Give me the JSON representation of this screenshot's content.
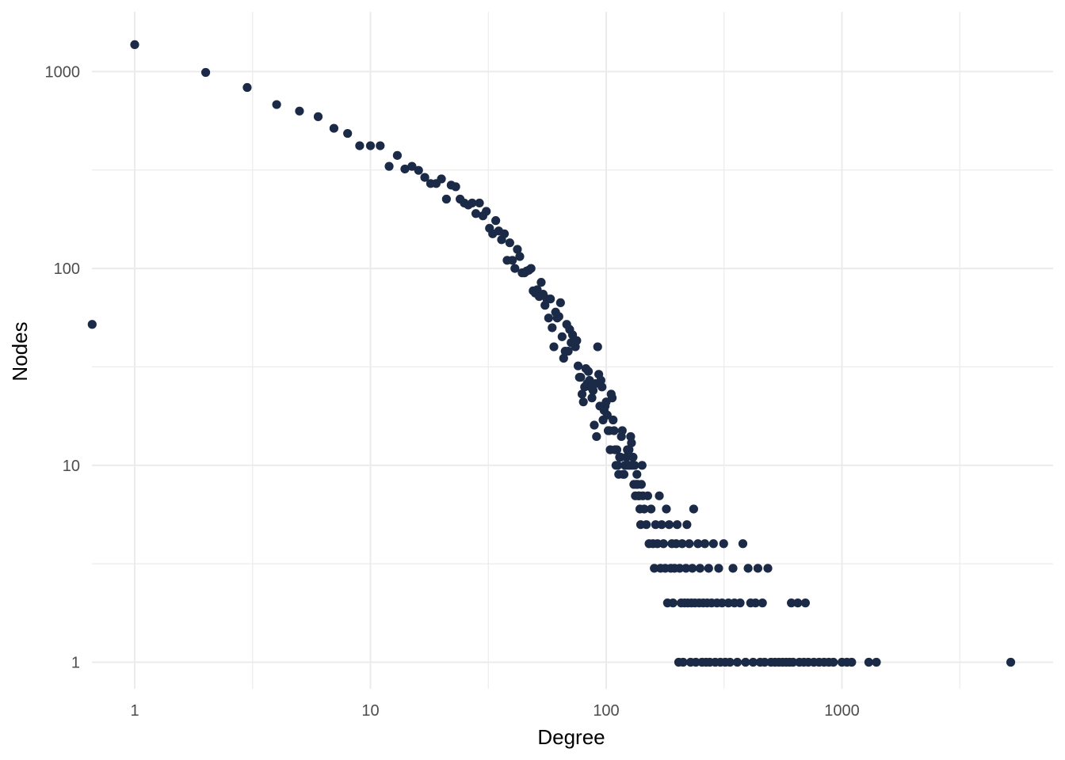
{
  "chart_data": {
    "type": "scatter",
    "title": "",
    "xlabel": "Degree",
    "ylabel": "Nodes",
    "x_scale": "log",
    "y_scale": "log",
    "xlim": [
      0.66,
      7600
    ],
    "ylim": [
      0.72,
      1950
    ],
    "x_ticks": [
      1,
      10,
      100,
      1000
    ],
    "x_tick_labels": [
      "1",
      "10",
      "100",
      "1000"
    ],
    "y_ticks": [
      1,
      10,
      100,
      1000
    ],
    "y_tick_labels": [
      "1",
      "10",
      "100",
      "1000"
    ],
    "grid": true,
    "legend": "none",
    "point_color": "#1b2a47",
    "points": [
      [
        0.66,
        52
      ],
      [
        1,
        1370
      ],
      [
        2,
        990
      ],
      [
        3,
        830
      ],
      [
        4,
        680
      ],
      [
        5,
        630
      ],
      [
        6,
        590
      ],
      [
        7,
        515
      ],
      [
        8,
        485
      ],
      [
        9,
        420
      ],
      [
        10,
        420
      ],
      [
        11,
        420
      ],
      [
        12,
        330
      ],
      [
        13,
        375
      ],
      [
        14,
        320
      ],
      [
        15,
        330
      ],
      [
        16,
        315
      ],
      [
        17,
        290
      ],
      [
        18,
        270
      ],
      [
        19,
        270
      ],
      [
        20,
        285
      ],
      [
        21,
        225
      ],
      [
        22,
        265
      ],
      [
        23,
        260
      ],
      [
        24,
        225
      ],
      [
        25,
        215
      ],
      [
        26,
        210
      ],
      [
        27,
        215
      ],
      [
        28,
        190
      ],
      [
        29,
        215
      ],
      [
        30,
        185
      ],
      [
        31,
        195
      ],
      [
        32,
        160
      ],
      [
        33,
        150
      ],
      [
        34,
        175
      ],
      [
        35,
        155
      ],
      [
        36,
        140
      ],
      [
        37,
        150
      ],
      [
        38,
        110
      ],
      [
        39,
        135
      ],
      [
        40,
        110
      ],
      [
        41,
        100
      ],
      [
        42,
        125
      ],
      [
        43,
        115
      ],
      [
        44,
        95
      ],
      [
        45,
        95
      ],
      [
        46,
        97
      ],
      [
        47,
        98
      ],
      [
        48,
        100
      ],
      [
        49,
        77
      ],
      [
        50,
        75
      ],
      [
        51,
        78
      ],
      [
        52,
        72
      ],
      [
        53,
        85
      ],
      [
        54,
        74
      ],
      [
        55,
        65
      ],
      [
        56,
        70
      ],
      [
        57,
        56
      ],
      [
        58,
        70
      ],
      [
        59,
        50
      ],
      [
        60,
        40
      ],
      [
        61,
        60
      ],
      [
        62,
        56
      ],
      [
        63,
        57
      ],
      [
        64,
        67
      ],
      [
        65,
        45
      ],
      [
        66,
        35
      ],
      [
        67,
        38
      ],
      [
        68,
        52
      ],
      [
        69,
        38
      ],
      [
        70,
        49
      ],
      [
        71,
        42
      ],
      [
        72,
        46
      ],
      [
        73,
        42
      ],
      [
        74,
        40
      ],
      [
        75,
        43
      ],
      [
        76,
        32
      ],
      [
        77,
        28
      ],
      [
        78,
        28
      ],
      [
        79,
        23
      ],
      [
        80,
        21
      ],
      [
        81,
        25
      ],
      [
        82,
        31
      ],
      [
        83,
        26
      ],
      [
        84,
        30
      ],
      [
        85,
        27
      ],
      [
        86,
        25
      ],
      [
        87,
        22
      ],
      [
        88,
        24
      ],
      [
        89,
        16
      ],
      [
        90,
        26
      ],
      [
        91,
        14
      ],
      [
        92,
        40
      ],
      [
        93,
        29
      ],
      [
        94,
        20
      ],
      [
        95,
        27
      ],
      [
        96,
        25
      ],
      [
        97,
        17
      ],
      [
        98,
        19
      ],
      [
        99,
        20
      ],
      [
        100,
        21
      ],
      [
        101,
        18
      ],
      [
        102,
        15
      ],
      [
        103,
        15
      ],
      [
        104,
        12
      ],
      [
        105,
        23
      ],
      [
        106,
        22
      ],
      [
        107,
        17
      ],
      [
        108,
        15
      ],
      [
        109,
        12
      ],
      [
        110,
        10
      ],
      [
        111,
        12
      ],
      [
        112,
        10
      ],
      [
        113,
        9
      ],
      [
        114,
        11
      ],
      [
        115,
        11
      ],
      [
        116,
        14
      ],
      [
        117,
        15
      ],
      [
        118,
        9
      ],
      [
        119,
        9
      ],
      [
        120,
        10
      ],
      [
        121,
        10
      ],
      [
        122,
        11
      ],
      [
        123,
        12
      ],
      [
        124,
        10
      ],
      [
        125,
        12
      ],
      [
        126,
        10
      ],
      [
        127,
        14
      ],
      [
        128,
        13
      ],
      [
        129,
        10
      ],
      [
        130,
        11
      ],
      [
        131,
        8
      ],
      [
        132,
        10
      ],
      [
        133,
        7
      ],
      [
        134,
        8
      ],
      [
        135,
        9
      ],
      [
        136,
        8
      ],
      [
        137,
        7
      ],
      [
        138,
        7
      ],
      [
        139,
        6
      ],
      [
        140,
        5
      ],
      [
        141,
        8
      ],
      [
        142,
        10
      ],
      [
        143,
        7
      ],
      [
        145,
        6
      ],
      [
        148,
        5
      ],
      [
        150,
        7
      ],
      [
        152,
        4
      ],
      [
        155,
        6
      ],
      [
        158,
        4
      ],
      [
        160,
        3
      ],
      [
        162,
        5
      ],
      [
        165,
        4
      ],
      [
        168,
        7
      ],
      [
        170,
        3
      ],
      [
        172,
        5
      ],
      [
        175,
        4
      ],
      [
        178,
        3
      ],
      [
        180,
        6
      ],
      [
        182,
        2
      ],
      [
        185,
        5
      ],
      [
        188,
        3
      ],
      [
        190,
        4
      ],
      [
        192,
        2
      ],
      [
        195,
        3
      ],
      [
        198,
        4
      ],
      [
        200,
        5
      ],
      [
        203,
        1
      ],
      [
        205,
        3
      ],
      [
        208,
        2
      ],
      [
        210,
        4
      ],
      [
        212,
        1
      ],
      [
        215,
        2
      ],
      [
        218,
        3
      ],
      [
        220,
        5
      ],
      [
        222,
        2
      ],
      [
        225,
        4
      ],
      [
        228,
        1
      ],
      [
        230,
        2
      ],
      [
        232,
        3
      ],
      [
        235,
        6
      ],
      [
        238,
        2
      ],
      [
        240,
        1
      ],
      [
        245,
        4
      ],
      [
        248,
        2
      ],
      [
        250,
        3
      ],
      [
        255,
        1
      ],
      [
        258,
        2
      ],
      [
        262,
        4
      ],
      [
        265,
        1
      ],
      [
        268,
        2
      ],
      [
        272,
        3
      ],
      [
        275,
        1
      ],
      [
        280,
        2
      ],
      [
        285,
        4
      ],
      [
        290,
        1
      ],
      [
        295,
        2
      ],
      [
        300,
        3
      ],
      [
        305,
        1
      ],
      [
        310,
        2
      ],
      [
        315,
        4
      ],
      [
        320,
        1
      ],
      [
        330,
        2
      ],
      [
        335,
        1
      ],
      [
        345,
        3
      ],
      [
        350,
        2
      ],
      [
        360,
        1
      ],
      [
        370,
        2
      ],
      [
        380,
        4
      ],
      [
        390,
        1
      ],
      [
        400,
        3
      ],
      [
        410,
        2
      ],
      [
        420,
        1
      ],
      [
        430,
        2
      ],
      [
        440,
        3
      ],
      [
        450,
        1
      ],
      [
        460,
        2
      ],
      [
        470,
        1
      ],
      [
        485,
        3
      ],
      [
        500,
        1
      ],
      [
        520,
        1
      ],
      [
        540,
        1
      ],
      [
        560,
        1
      ],
      [
        580,
        1
      ],
      [
        600,
        1
      ],
      [
        610,
        2
      ],
      [
        620,
        1
      ],
      [
        650,
        2
      ],
      [
        660,
        1
      ],
      [
        690,
        1
      ],
      [
        700,
        2
      ],
      [
        720,
        1
      ],
      [
        760,
        1
      ],
      [
        800,
        1
      ],
      [
        840,
        1
      ],
      [
        880,
        1
      ],
      [
        920,
        1
      ],
      [
        1000,
        1
      ],
      [
        1050,
        1
      ],
      [
        1100,
        1
      ],
      [
        1300,
        1
      ],
      [
        1400,
        1
      ],
      [
        5200,
        1
      ]
    ]
  }
}
